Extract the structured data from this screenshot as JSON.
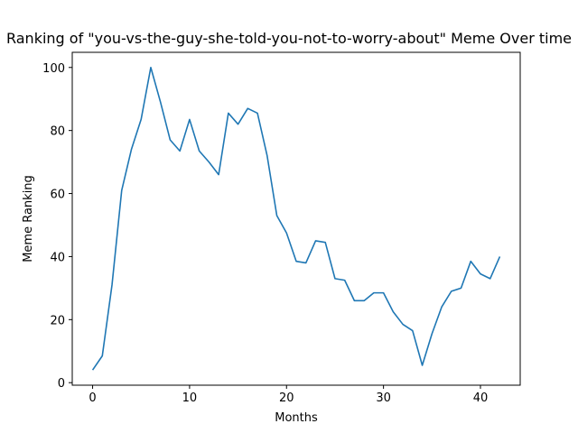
{
  "chart_data": {
    "type": "line",
    "title": "Ranking of \"you-vs-the-guy-she-told-you-not-to-worry-about\" Meme Over time",
    "xlabel": "Months",
    "ylabel": "Meme Ranking",
    "xlim": [
      -2.1,
      44.1
    ],
    "ylim": [
      -0.8,
      104.8
    ],
    "xticks": [
      0,
      10,
      20,
      30,
      40
    ],
    "yticks": [
      0,
      20,
      40,
      60,
      80,
      100
    ],
    "grid": false,
    "legend": "none",
    "series": [
      {
        "color": "#1f77b4",
        "x": [
          0,
          1,
          2,
          3,
          4,
          5,
          6,
          7,
          8,
          9,
          10,
          11,
          12,
          13,
          14,
          15,
          16,
          17,
          18,
          19,
          20,
          21,
          22,
          23,
          24,
          25,
          26,
          27,
          28,
          29,
          30,
          31,
          32,
          33,
          34,
          35,
          36,
          37,
          38,
          39,
          40,
          41,
          42
        ],
        "values": [
          4,
          8.5,
          31,
          61,
          74,
          83.5,
          100,
          89,
          77,
          73.5,
          83.5,
          73.5,
          70,
          66,
          85.5,
          82,
          87,
          85.5,
          72,
          53,
          47.5,
          38.5,
          38,
          45,
          44.5,
          33,
          32.5,
          26,
          26,
          28.5,
          28.5,
          22.5,
          18.5,
          16.5,
          5.5,
          15.5,
          24,
          29,
          30,
          38.5,
          34.5,
          33,
          40
        ]
      }
    ]
  }
}
